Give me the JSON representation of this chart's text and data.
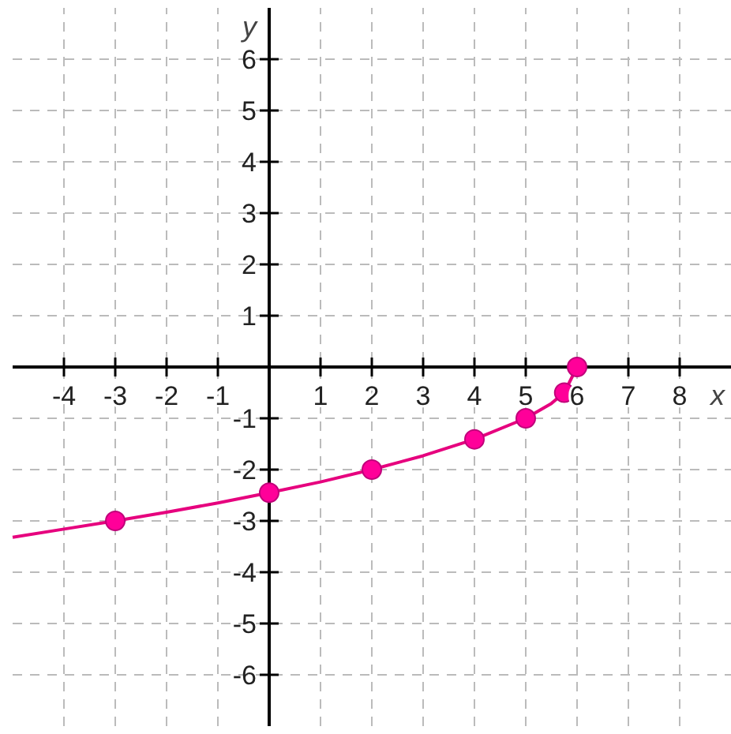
{
  "chart_data": {
    "type": "line",
    "xlabel": "x",
    "ylabel": "y",
    "xlim": [
      -5,
      9
    ],
    "ylim": [
      -7,
      7
    ],
    "xticks": [
      -4,
      -3,
      -2,
      -1,
      1,
      2,
      3,
      4,
      5,
      6,
      7,
      8
    ],
    "yticks": [
      -6,
      -5,
      -4,
      -3,
      -2,
      -1,
      1,
      2,
      3,
      4,
      5,
      6
    ],
    "grid": true,
    "series": [
      {
        "color": "#e6007e",
        "marker": "none",
        "x": [
          -5,
          -4,
          -3,
          -2,
          -1,
          0,
          1,
          2,
          3,
          4,
          5,
          5.5,
          5.75,
          6
        ],
        "values": [
          -3.32,
          -3.16,
          -3,
          -2.83,
          -2.65,
          -2.45,
          -2.24,
          -2,
          -1.73,
          -1.41,
          -1,
          -0.71,
          -0.5,
          0
        ]
      },
      {
        "type": "scatter",
        "color": "#ff0099",
        "marker": "circle",
        "x": [
          -3,
          0,
          2,
          4,
          5,
          5.75,
          6
        ],
        "values": [
          -3,
          -2.45,
          -2,
          -1.41,
          -1,
          -0.5,
          0
        ]
      }
    ]
  }
}
